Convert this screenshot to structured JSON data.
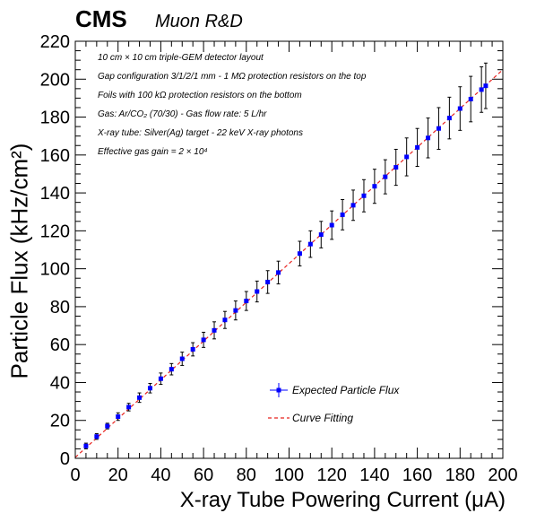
{
  "header": {
    "experiment": "CMS",
    "subtitle": "Muon R&D"
  },
  "annotations": [
    "10 cm × 10 cm triple-GEM detector layout",
    "Gap configuration 3/1/2/1 mm - 1 MΩ protection resistors on the top",
    "Foils with 100 kΩ protection resistors on the bottom",
    "Gas: Ar/CO₂ (70/30) - Gas flow rate: 5 L/hr",
    "X-ray tube: Silver(Ag) target - 22 keV X-ray photons",
    "Effective gas gain = 2 × 10⁴"
  ],
  "colors": {
    "points": "#0000ff",
    "fit": "#e8231f",
    "errors": "#000000"
  },
  "chart_data": {
    "type": "scatter",
    "xlabel": "X-ray Tube Powering Current (μA)",
    "ylabel": "Particle Flux (kHz/cm²)",
    "xlim": [
      0,
      200
    ],
    "ylim": [
      0,
      220
    ],
    "x_ticks": [
      "0",
      "20",
      "40",
      "60",
      "80",
      "100",
      "120",
      "140",
      "160",
      "180",
      "200"
    ],
    "y_ticks": [
      "0",
      "20",
      "40",
      "60",
      "80",
      "100",
      "120",
      "140",
      "160",
      "180",
      "200",
      "220"
    ],
    "grid": false,
    "legend": {
      "placement": "bottom-center"
    },
    "series": [
      {
        "name": "Expected Particle Flux",
        "marker": "square",
        "points": [
          {
            "x": 5,
            "y": 6.5,
            "err": 1.5
          },
          {
            "x": 10,
            "y": 11.5,
            "err": 1.5
          },
          {
            "x": 15,
            "y": 17,
            "err": 1.5
          },
          {
            "x": 20,
            "y": 22,
            "err": 2
          },
          {
            "x": 25,
            "y": 27,
            "err": 2
          },
          {
            "x": 30,
            "y": 32,
            "err": 2.5
          },
          {
            "x": 35,
            "y": 37,
            "err": 2.5
          },
          {
            "x": 40,
            "y": 42,
            "err": 3
          },
          {
            "x": 45,
            "y": 47,
            "err": 3
          },
          {
            "x": 50,
            "y": 52.5,
            "err": 3.5
          },
          {
            "x": 55,
            "y": 57.5,
            "err": 3.5
          },
          {
            "x": 60,
            "y": 62.5,
            "err": 4
          },
          {
            "x": 65,
            "y": 67.5,
            "err": 4.5
          },
          {
            "x": 70,
            "y": 73,
            "err": 4.5
          },
          {
            "x": 75,
            "y": 78,
            "err": 5
          },
          {
            "x": 80,
            "y": 83,
            "err": 5
          },
          {
            "x": 85,
            "y": 88,
            "err": 5.5
          },
          {
            "x": 90,
            "y": 93,
            "err": 6
          },
          {
            "x": 95,
            "y": 98,
            "err": 6
          },
          {
            "x": 105,
            "y": 108,
            "err": 6.5
          },
          {
            "x": 110,
            "y": 113,
            "err": 7
          },
          {
            "x": 115,
            "y": 118,
            "err": 7
          },
          {
            "x": 120,
            "y": 123,
            "err": 7.5
          },
          {
            "x": 125,
            "y": 128.5,
            "err": 8
          },
          {
            "x": 130,
            "y": 133.5,
            "err": 8
          },
          {
            "x": 135,
            "y": 138.5,
            "err": 8.5
          },
          {
            "x": 140,
            "y": 143.5,
            "err": 9
          },
          {
            "x": 145,
            "y": 148.5,
            "err": 9
          },
          {
            "x": 150,
            "y": 153.5,
            "err": 9.5
          },
          {
            "x": 155,
            "y": 159,
            "err": 10
          },
          {
            "x": 160,
            "y": 164,
            "err": 10
          },
          {
            "x": 165,
            "y": 169,
            "err": 10.5
          },
          {
            "x": 170,
            "y": 174,
            "err": 11
          },
          {
            "x": 175,
            "y": 179.5,
            "err": 11
          },
          {
            "x": 180,
            "y": 184.5,
            "err": 11.5
          },
          {
            "x": 185,
            "y": 189.5,
            "err": 12
          },
          {
            "x": 190,
            "y": 194.5,
            "err": 12
          },
          {
            "x": 192,
            "y": 196.5,
            "err": 12
          }
        ]
      },
      {
        "name": "Curve Fitting",
        "style": "dashed-line",
        "line": {
          "x0": 0,
          "y0": 0.5,
          "x1": 200,
          "y1": 205
        }
      }
    ]
  }
}
